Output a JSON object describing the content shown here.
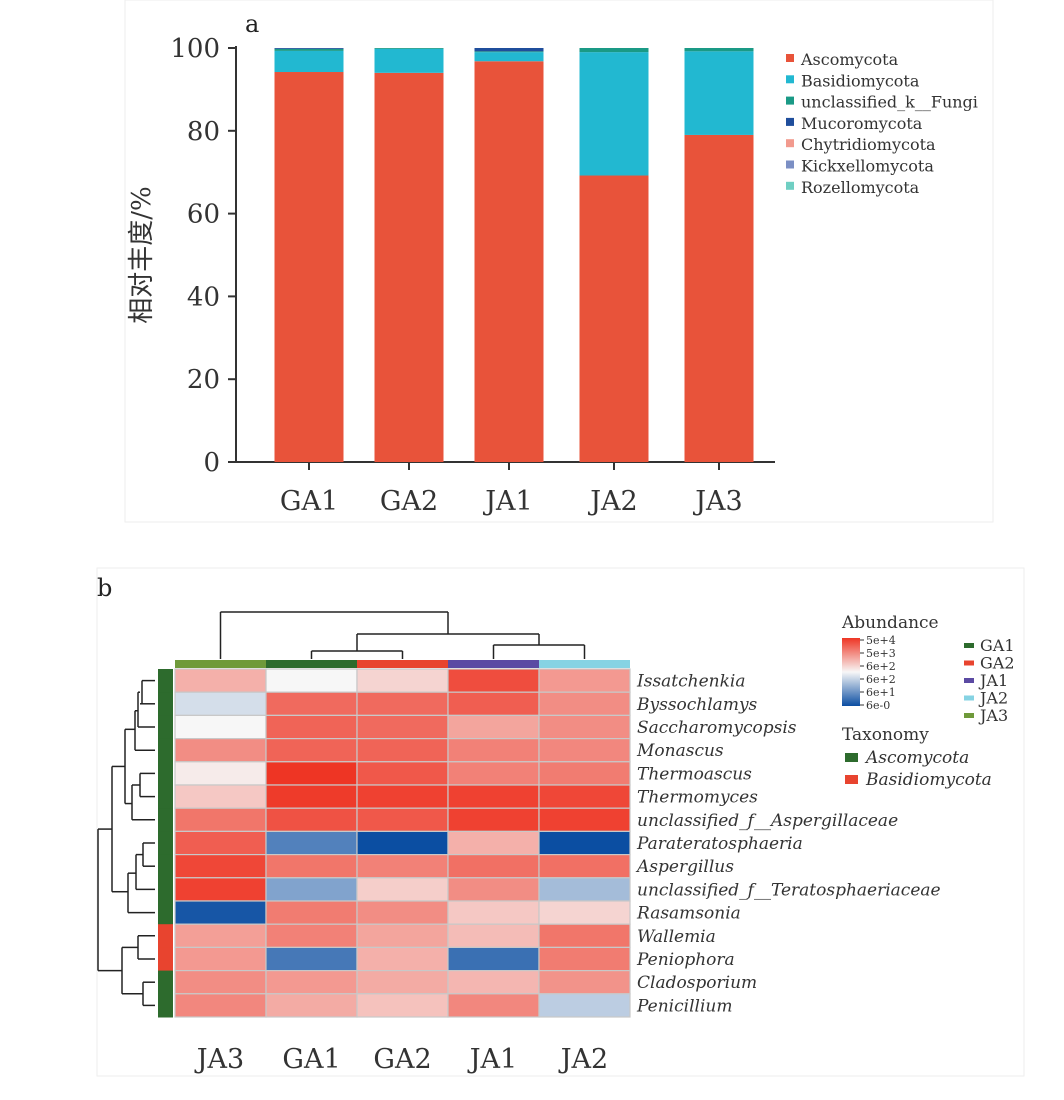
{
  "chart_data": [
    {
      "type": "bar",
      "stacked": true,
      "panel_label": "a",
      "categories": [
        "GA1",
        "GA2",
        "JA1",
        "JA2",
        "JA3"
      ],
      "ylabel": "相对丰度/%",
      "ylim": [
        0,
        100
      ],
      "yticks": [
        0,
        20,
        40,
        60,
        80,
        100
      ],
      "legend_position": "right",
      "series": [
        {
          "name": "Ascomycota",
          "color": "#e8533a",
          "values": [
            94.2,
            94.0,
            96.8,
            69.2,
            79.0
          ]
        },
        {
          "name": "Basidiomycota",
          "color": "#22b8d1",
          "values": [
            5.1,
            5.8,
            2.2,
            29.8,
            20.2
          ]
        },
        {
          "name": "unclassified_k__Fungi",
          "color": "#1a9a86",
          "values": [
            0.5,
            0.2,
            0.2,
            1.0,
            0.8
          ]
        },
        {
          "name": "Mucoromycota",
          "color": "#1f4e9c",
          "values": [
            0.2,
            0.0,
            0.8,
            0.0,
            0.0
          ]
        },
        {
          "name": "Chytridiomycota",
          "color": "#f29a8e",
          "values": [
            0.0,
            0.0,
            0.0,
            0.0,
            0.0
          ]
        },
        {
          "name": "Kickxellomycota",
          "color": "#7b8fc4",
          "values": [
            0.0,
            0.0,
            0.0,
            0.0,
            0.0
          ]
        },
        {
          "name": "Rozellomycota",
          "color": "#6fcfc3",
          "values": [
            0.0,
            0.0,
            0.0,
            0.0,
            0.0
          ]
        }
      ]
    },
    {
      "type": "heatmap",
      "panel_label": "b",
      "columns": [
        "JA3",
        "GA1",
        "GA2",
        "JA1",
        "JA2"
      ],
      "column_colors": [
        "#6f9a3a",
        "#2d6b2d",
        "#e8442f",
        "#5b4aa3",
        "#86d3e3"
      ],
      "rows": [
        {
          "name": "Issatchenkia",
          "taxonomy": "Ascomycota",
          "values": [
            3.2,
            2.0,
            2.6,
            4.9,
            3.6
          ]
        },
        {
          "name": "Byssochlamys",
          "taxonomy": "Ascomycota",
          "values": [
            1.7,
            4.4,
            4.4,
            4.6,
            3.8
          ]
        },
        {
          "name": "Saccharomycopsis",
          "taxonomy": "Ascomycota",
          "values": [
            2.0,
            4.5,
            4.4,
            3.4,
            3.8
          ]
        },
        {
          "name": "Monascus",
          "taxonomy": "Ascomycota",
          "values": [
            3.8,
            4.5,
            4.5,
            4.0,
            3.9
          ]
        },
        {
          "name": "Thermoascus",
          "taxonomy": "Ascomycota",
          "values": [
            2.2,
            5.3,
            4.7,
            4.0,
            4.1
          ]
        },
        {
          "name": "Thermomyces",
          "taxonomy": "Ascomycota",
          "values": [
            2.8,
            5.2,
            5.1,
            5.1,
            5.0
          ]
        },
        {
          "name": "unclassified_f__Aspergillaceae",
          "taxonomy": "Ascomycota",
          "values": [
            4.2,
            4.8,
            4.7,
            5.1,
            5.1
          ]
        },
        {
          "name": "Parateratosphaeria",
          "taxonomy": "Ascomycota",
          "values": [
            4.6,
            0.6,
            0.0,
            3.2,
            0.0
          ]
        },
        {
          "name": "Aspergillus",
          "taxonomy": "Ascomycota",
          "values": [
            5.0,
            4.2,
            4.0,
            4.3,
            4.3
          ]
        },
        {
          "name": "unclassified_f__Teratosphaeriaceae",
          "taxonomy": "Ascomycota",
          "values": [
            5.1,
            1.0,
            2.7,
            3.8,
            1.3
          ]
        },
        {
          "name": "Rasamsonia",
          "taxonomy": "Ascomycota",
          "values": [
            0.1,
            4.1,
            3.8,
            2.8,
            2.6
          ]
        },
        {
          "name": "Wallemia",
          "taxonomy": "Basidiomycota",
          "values": [
            3.5,
            4.0,
            3.4,
            3.0,
            4.2
          ]
        },
        {
          "name": "Peniophora",
          "taxonomy": "Basidiomycota",
          "values": [
            3.6,
            0.5,
            3.2,
            0.4,
            4.1
          ]
        },
        {
          "name": "Cladosporium",
          "taxonomy": "Ascomycota",
          "values": [
            3.8,
            3.6,
            3.3,
            3.1,
            3.7
          ]
        },
        {
          "name": "Penicillium",
          "taxonomy": "Ascomycota",
          "values": [
            3.9,
            3.3,
            2.9,
            3.9,
            1.5
          ]
        }
      ],
      "color_scale": {
        "title": "Abundance",
        "low_color": "#0b4ea2",
        "mid_color": "#f7f7f7",
        "high_color": "#ee3524",
        "tick_labels": [
          "5e+4",
          "5e+3",
          "6e+2",
          "6e+2",
          "6e+1",
          "6e-0"
        ]
      },
      "group_legend": [
        {
          "name": "GA1",
          "color": "#2d6b2d"
        },
        {
          "name": "GA2",
          "color": "#e8442f"
        },
        {
          "name": "JA1",
          "color": "#5b4aa3"
        },
        {
          "name": "JA2",
          "color": "#86d3e3"
        },
        {
          "name": "JA3",
          "color": "#6f9a3a"
        }
      ],
      "taxonomy_legend": {
        "title": "Taxonomy",
        "items": [
          {
            "name": "Ascomycota",
            "color": "#2d6b2d"
          },
          {
            "name": "Basidiomycota",
            "color": "#e8442f"
          }
        ]
      }
    }
  ]
}
